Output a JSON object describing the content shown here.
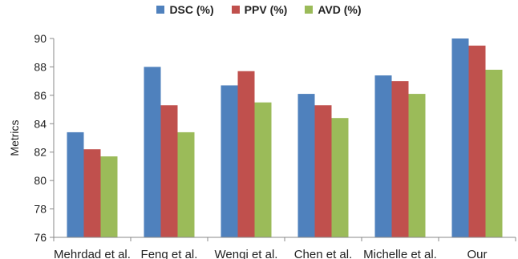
{
  "chart_data": {
    "type": "bar",
    "title": "",
    "xlabel": "",
    "ylabel": "Metrics",
    "ylim": [
      76,
      90
    ],
    "yticks": [
      76,
      78,
      80,
      82,
      84,
      86,
      88,
      90
    ],
    "grid": false,
    "legend_position": "top-center",
    "categories": [
      "Mehrdad et al.",
      "Feng et al.",
      "Wenqi et al.",
      "Chen et al.",
      "Michelle et al.",
      "Our"
    ],
    "series": [
      {
        "name": "DSC (%)",
        "color": "#4F81BD",
        "values": [
          83.4,
          88.0,
          86.7,
          86.1,
          87.4,
          90.0
        ]
      },
      {
        "name": "PPV (%)",
        "color": "#C0504D",
        "values": [
          82.2,
          85.3,
          87.7,
          85.3,
          87.0,
          89.5
        ]
      },
      {
        "name": "AVD (%)",
        "color": "#9BBB59",
        "values": [
          81.7,
          83.4,
          85.5,
          84.4,
          86.1,
          87.8
        ]
      }
    ]
  }
}
